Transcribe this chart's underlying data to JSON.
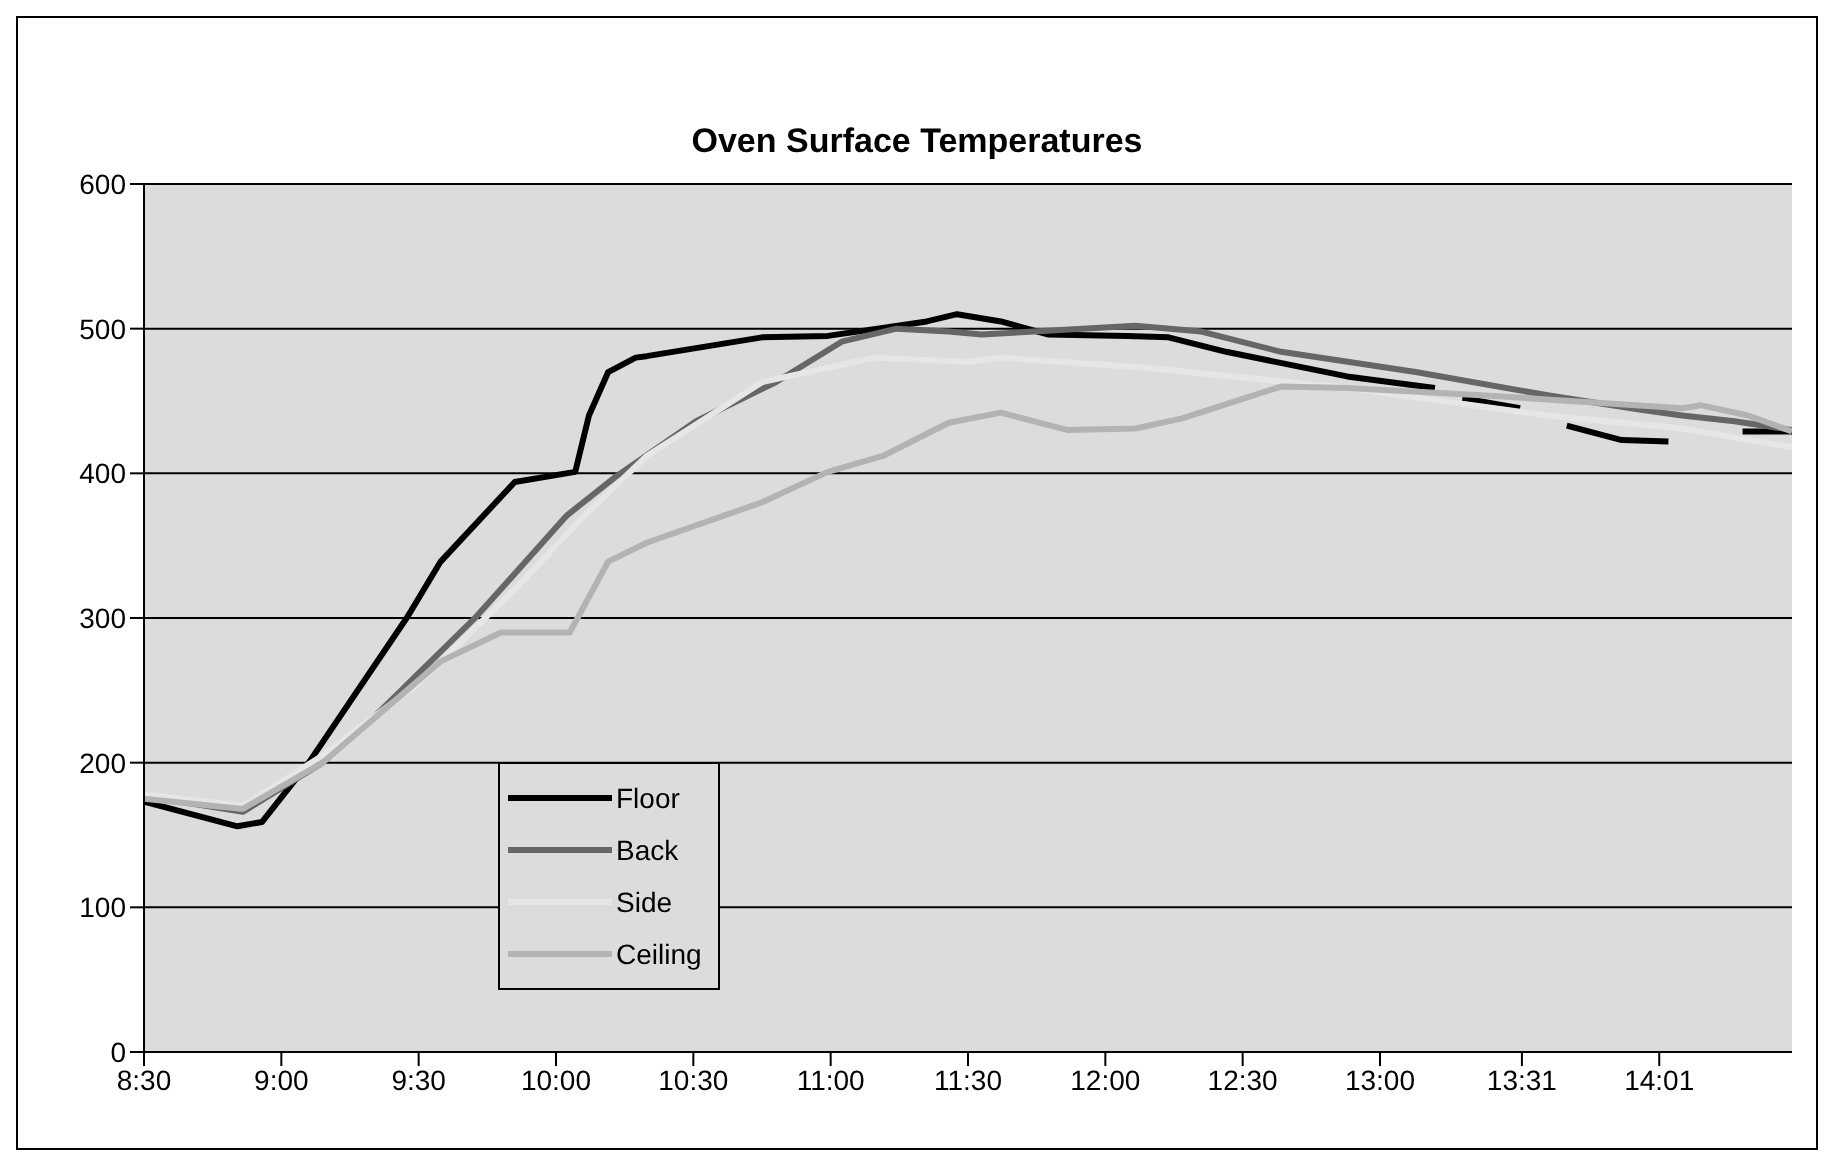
{
  "chart_data": {
    "type": "line",
    "title": "Oven Surface Temperatures",
    "xlim": [
      8.5,
      14.5
    ],
    "xticks": [
      {
        "value": 8.5,
        "label": "8:30"
      },
      {
        "value": 9,
        "label": "9:00"
      },
      {
        "value": 9.5,
        "label": "9:30"
      },
      {
        "value": 10,
        "label": "10:00"
      },
      {
        "value": 10.5,
        "label": "10:30"
      },
      {
        "value": 11,
        "label": "11:00"
      },
      {
        "value": 11.5,
        "label": "11:30"
      },
      {
        "value": 12,
        "label": "12:00"
      },
      {
        "value": 12.5,
        "label": "12:30"
      },
      {
        "value": 13,
        "label": "13:00"
      },
      {
        "value": 13.5167,
        "label": "13:31"
      },
      {
        "value": 14.0167,
        "label": "14:01"
      }
    ],
    "ylim": [
      0,
      600
    ],
    "yticks": [
      0,
      100,
      200,
      300,
      400,
      500,
      600
    ],
    "grid": "y",
    "legend": "bottom left",
    "marker": "none",
    "line_style": "solid",
    "series": [
      {
        "name": "Floor",
        "color": "#000000",
        "x": [
          8.5,
          8.84,
          8.93,
          9.1,
          9.46,
          9.58,
          9.85,
          10.07,
          10.12,
          10.19,
          10.29,
          10.33,
          10.75,
          10.99,
          11.35,
          11.46,
          11.62,
          11.79,
          12.08,
          12.23,
          12.44,
          12.88,
          13.2,
          13.25,
          13.3,
          13.51,
          13.6,
          13.68,
          13.88,
          14.05,
          14.2,
          14.32,
          14.5
        ],
        "values": [
          173,
          156,
          159,
          200,
          301,
          339,
          394,
          401,
          440,
          470,
          480,
          481,
          494,
          495,
          505,
          510,
          505,
          496,
          495,
          494,
          484,
          467,
          459,
          null,
          452,
          445,
          null,
          433,
          423,
          422,
          null,
          429,
          429
        ]
      },
      {
        "name": "Back",
        "color": "#666666",
        "x": [
          8.5,
          8.86,
          9.15,
          9.34,
          9.71,
          10.04,
          10.22,
          10.51,
          10.8,
          11.04,
          11.24,
          11.43,
          11.55,
          12.11,
          12.35,
          12.64,
          13.13,
          13.61,
          13.95,
          14.1,
          14.29,
          14.5
        ],
        "values": [
          177,
          166,
          200,
          232,
          301,
          371,
          398,
          436,
          463,
          491,
          500,
          498,
          496,
          502,
          498,
          484,
          470,
          454,
          444,
          440,
          436,
          430
        ]
      },
      {
        "name": "Side",
        "color": "#e6e6e6",
        "x": [
          8.5,
          8.86,
          9.15,
          9.5,
          9.85,
          10.1,
          10.33,
          10.75,
          11.16,
          11.5,
          11.62,
          12.15,
          12.88,
          13.61,
          14.1,
          14.5
        ],
        "values": [
          178,
          170,
          205,
          255,
          320,
          370,
          412,
          463,
          480,
          477,
          480,
          473,
          459,
          440,
          431,
          418
        ]
      },
      {
        "name": "Ceiling",
        "color": "#b3b3b3",
        "x": [
          8.5,
          8.86,
          9.15,
          9.58,
          9.8,
          10.05,
          10.19,
          10.33,
          10.75,
          10.99,
          11.19,
          11.43,
          11.62,
          11.86,
          12.11,
          12.28,
          12.64,
          12.88,
          13.37,
          14.1,
          14.17,
          14.34,
          14.5
        ],
        "values": [
          175,
          168,
          200,
          270,
          290,
          290,
          339,
          352,
          380,
          401,
          412,
          435,
          442,
          430,
          431,
          438,
          460,
          459,
          454,
          445,
          447,
          440,
          429
        ]
      }
    ]
  }
}
